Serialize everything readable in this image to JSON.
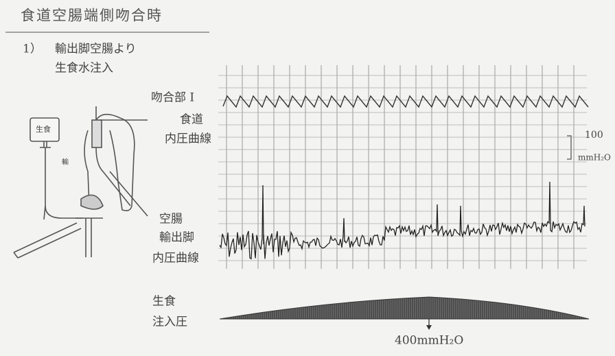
{
  "header": {
    "title": "食道空腸端側吻合時"
  },
  "section": {
    "number": "1）",
    "lines": [
      "輸出脚空腸より",
      "生食水注入"
    ]
  },
  "labels": {
    "anastomosis": "吻合部 I",
    "esophagus": [
      "食道",
      "内圧曲線"
    ],
    "scale": [
      "100",
      "mmH₂O"
    ],
    "jejunum": [
      "空腸",
      "輸出脚",
      "内圧曲線"
    ],
    "infusion": [
      "生食",
      "注入圧"
    ],
    "pressure": "400mmH₂O",
    "bottle": "生食",
    "tube": "輸"
  }
}
